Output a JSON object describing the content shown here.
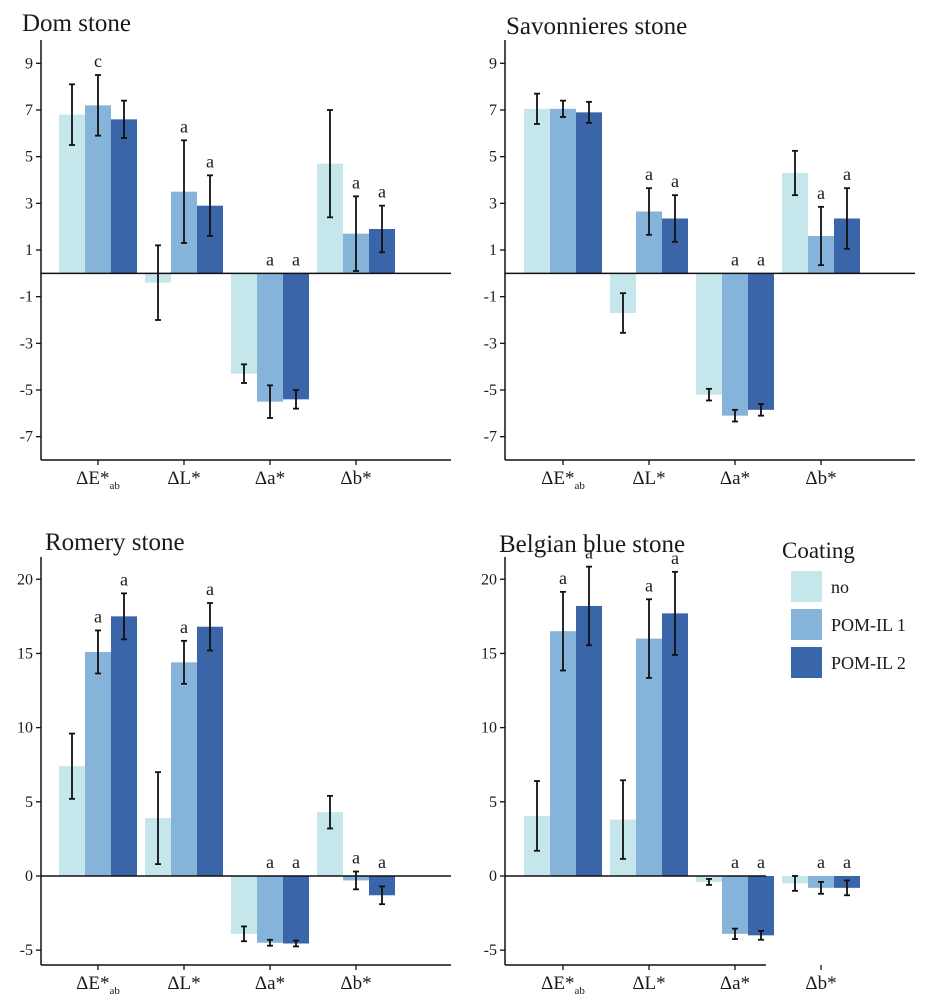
{
  "legend": {
    "title": "Coating",
    "entries": [
      {
        "label": "no",
        "color": "#c5e6ea"
      },
      {
        "label": "POM-IL 1",
        "color": "#86b3da"
      },
      {
        "label": "POM-IL 2",
        "color": "#3a65a8"
      }
    ]
  },
  "chart_data": [
    {
      "type": "bar",
      "title": "Dom stone",
      "categories": [
        "ΔE*ab",
        "ΔL*",
        "Δa*",
        "Δb*"
      ],
      "ylim": [
        -8,
        10
      ],
      "yticks": [
        9,
        7,
        5,
        3,
        1,
        -1,
        -3,
        -5,
        -7
      ],
      "series": [
        {
          "name": "no",
          "values": [
            6.8,
            -0.4,
            -4.3,
            4.7
          ],
          "errors": [
            1.3,
            1.6,
            0.4,
            2.3
          ]
        },
        {
          "name": "POM-IL 1",
          "values": [
            7.2,
            3.5,
            -5.5,
            1.7
          ],
          "errors": [
            1.3,
            2.2,
            0.7,
            1.6
          ]
        },
        {
          "name": "POM-IL 2",
          "values": [
            6.6,
            2.9,
            -5.4,
            1.9
          ],
          "errors": [
            0.8,
            1.3,
            0.4,
            1.0
          ]
        }
      ],
      "significance": [
        {
          "category": "ΔE*ab",
          "series": "POM-IL 1",
          "label": "c"
        },
        {
          "category": "ΔL*",
          "series": "POM-IL 1",
          "label": "a"
        },
        {
          "category": "ΔL*",
          "series": "POM-IL 2",
          "label": "a"
        },
        {
          "category": "Δa*",
          "series": "POM-IL 1",
          "label": "a"
        },
        {
          "category": "Δa*",
          "series": "POM-IL 2",
          "label": "a"
        },
        {
          "category": "Δb*",
          "series": "POM-IL 1",
          "label": "a"
        },
        {
          "category": "Δb*",
          "series": "POM-IL 2",
          "label": "a"
        }
      ]
    },
    {
      "type": "bar",
      "title": "Savonnieres stone",
      "categories": [
        "ΔE*ab",
        "ΔL*",
        "Δa*",
        "Δb*"
      ],
      "ylim": [
        -8,
        10
      ],
      "yticks": [
        9,
        7,
        5,
        3,
        1,
        -1,
        -3,
        -5,
        -7
      ],
      "series": [
        {
          "name": "no",
          "values": [
            7.05,
            -1.7,
            -5.2,
            4.3
          ],
          "errors": [
            0.65,
            0.85,
            0.25,
            0.95
          ]
        },
        {
          "name": "POM-IL 1",
          "values": [
            7.05,
            2.65,
            -6.1,
            1.6
          ],
          "errors": [
            0.35,
            1.0,
            0.25,
            1.25
          ]
        },
        {
          "name": "POM-IL 2",
          "values": [
            6.9,
            2.35,
            -5.85,
            2.35
          ],
          "errors": [
            0.45,
            1.0,
            0.25,
            1.3
          ]
        }
      ],
      "significance": [
        {
          "category": "ΔL*",
          "series": "POM-IL 1",
          "label": "a"
        },
        {
          "category": "ΔL*",
          "series": "POM-IL 2",
          "label": "a"
        },
        {
          "category": "Δa*",
          "series": "POM-IL 1",
          "label": "a"
        },
        {
          "category": "Δa*",
          "series": "POM-IL 2",
          "label": "a"
        },
        {
          "category": "Δb*",
          "series": "POM-IL 1",
          "label": "a"
        },
        {
          "category": "Δb*",
          "series": "POM-IL 2",
          "label": "a"
        }
      ]
    },
    {
      "type": "bar",
      "title": "Romery stone",
      "categories": [
        "ΔE*ab",
        "ΔL*",
        "Δa*",
        "Δb*"
      ],
      "ylim": [
        -6,
        21.5
      ],
      "yticks": [
        20,
        15,
        10,
        5,
        0,
        -5
      ],
      "series": [
        {
          "name": "no",
          "values": [
            7.4,
            3.9,
            -3.9,
            4.3
          ],
          "errors": [
            2.2,
            3.1,
            0.5,
            1.1
          ]
        },
        {
          "name": "POM-IL 1",
          "values": [
            15.1,
            14.4,
            -4.5,
            -0.3
          ],
          "errors": [
            1.45,
            1.45,
            0.2,
            0.6
          ]
        },
        {
          "name": "POM-IL 2",
          "values": [
            17.5,
            16.8,
            -4.55,
            -1.3
          ],
          "errors": [
            1.55,
            1.6,
            0.2,
            0.6
          ]
        }
      ],
      "significance": [
        {
          "category": "ΔE*ab",
          "series": "POM-IL 1",
          "label": "a"
        },
        {
          "category": "ΔE*ab",
          "series": "POM-IL 2",
          "label": "a"
        },
        {
          "category": "ΔL*",
          "series": "POM-IL 1",
          "label": "a"
        },
        {
          "category": "ΔL*",
          "series": "POM-IL 2",
          "label": "a"
        },
        {
          "category": "Δa*",
          "series": "POM-IL 1",
          "label": "a"
        },
        {
          "category": "Δa*",
          "series": "POM-IL 2",
          "label": "a"
        },
        {
          "category": "Δb*",
          "series": "POM-IL 1",
          "label": "a"
        },
        {
          "category": "Δb*",
          "series": "POM-IL 2",
          "label": "a"
        }
      ]
    },
    {
      "type": "bar",
      "title": "Belgian blue stone",
      "categories": [
        "ΔE*ab",
        "ΔL*",
        "Δa*",
        "Δb*"
      ],
      "ylim": [
        -6,
        21.5
      ],
      "yticks": [
        20,
        15,
        10,
        5,
        0,
        -5
      ],
      "series": [
        {
          "name": "no",
          "values": [
            4.05,
            3.8,
            -0.4,
            -0.5
          ],
          "errors": [
            2.35,
            2.65,
            0.2,
            0.5
          ]
        },
        {
          "name": "POM-IL 1",
          "values": [
            16.5,
            16.0,
            -3.9,
            -0.8
          ],
          "errors": [
            2.65,
            2.65,
            0.35,
            0.4
          ]
        },
        {
          "name": "POM-IL 2",
          "values": [
            18.2,
            17.7,
            -4.0,
            -0.8
          ],
          "errors": [
            2.65,
            2.8,
            0.3,
            0.5
          ]
        }
      ],
      "significance": [
        {
          "category": "ΔE*ab",
          "series": "POM-IL 1",
          "label": "a"
        },
        {
          "category": "ΔE*ab",
          "series": "POM-IL 2",
          "label": "a"
        },
        {
          "category": "ΔL*",
          "series": "POM-IL 1",
          "label": "a"
        },
        {
          "category": "ΔL*",
          "series": "POM-IL 2",
          "label": "a"
        },
        {
          "category": "Δa*",
          "series": "POM-IL 1",
          "label": "a"
        },
        {
          "category": "Δa*",
          "series": "POM-IL 2",
          "label": "a"
        },
        {
          "category": "Δb*",
          "series": "POM-IL 1",
          "label": "a"
        },
        {
          "category": "Δb*",
          "series": "POM-IL 2",
          "label": "a"
        }
      ]
    }
  ]
}
